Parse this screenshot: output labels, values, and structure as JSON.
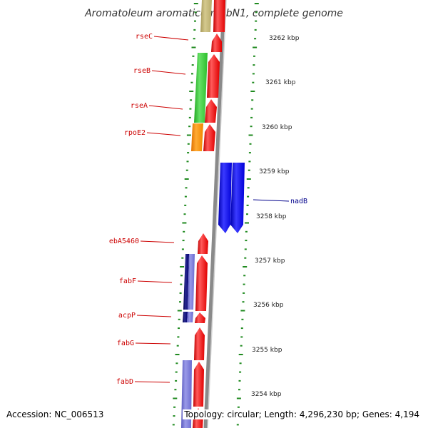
{
  "title": "Aromatoleum aromaticum EbN1, complete genome",
  "colors": {
    "forward_gene": "#ff0000",
    "reverse_gene": "#0000ee",
    "tick": "#1f8a1f",
    "backbone": "#808080",
    "label_left": "#cc0000",
    "label_right": "#00008b"
  },
  "scale_labels": [
    "3262 kbp",
    "3261 kbp",
    "3260 kbp",
    "3259 kbp",
    "3258 kbp",
    "3257 kbp",
    "3256 kbp",
    "3255 kbp",
    "3254 kbp"
  ],
  "gene_labels": [
    {
      "name": "rseC",
      "side": "left"
    },
    {
      "name": "rseB",
      "side": "left"
    },
    {
      "name": "rseA",
      "side": "left"
    },
    {
      "name": "rpoE2",
      "side": "left"
    },
    {
      "name": "nadB",
      "side": "right"
    },
    {
      "name": "ebA5460",
      "side": "left"
    },
    {
      "name": "fabF",
      "side": "left"
    },
    {
      "name": "acpP",
      "side": "left"
    },
    {
      "name": "fabG",
      "side": "left"
    },
    {
      "name": "fabD",
      "side": "left"
    }
  ],
  "footer": {
    "accession": "Accession: NC_006513",
    "topology": "Topology: circular; Length: 4,296,230 bp; Genes: 4,194"
  }
}
